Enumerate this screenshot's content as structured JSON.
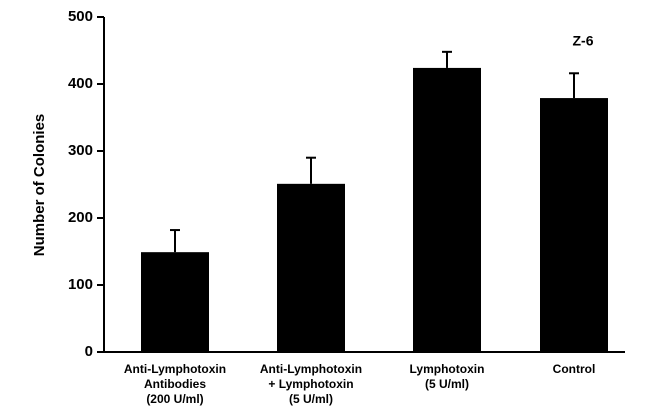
{
  "chart_data": {
    "type": "bar",
    "y_label": "Number of Colonies",
    "annotation": "Z-6",
    "categories": [
      [
        "Anti-Lymphotoxin",
        "Antibodies",
        "(200 U/ml)"
      ],
      [
        "Anti-Lymphotoxin",
        "+ Lymphotoxin",
        "(5 U/ml)"
      ],
      [
        "Lymphotoxin",
        "(5 U/ml)"
      ],
      [
        "Control"
      ]
    ],
    "values": [
      149,
      251,
      424,
      379
    ],
    "errors": [
      33,
      39,
      24,
      37
    ],
    "color": "#000000",
    "ylim": [
      0,
      500
    ],
    "yticks": [
      0,
      100,
      200,
      300,
      400,
      500
    ]
  }
}
